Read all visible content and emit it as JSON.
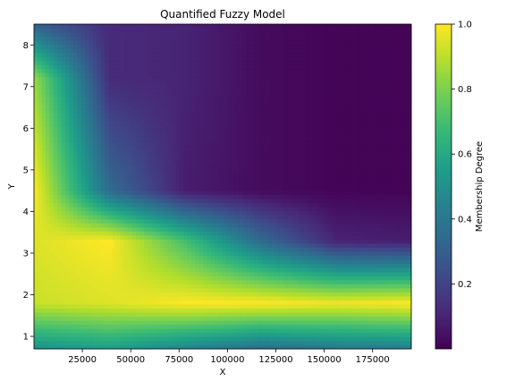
{
  "chart_data": {
    "type": "heatmap",
    "title": "Quantified Fuzzy Model",
    "xlabel": "X",
    "ylabel": "Y",
    "colorbar_label": "Membership Degree",
    "colormap": "viridis",
    "xlim": [
      0,
      195000
    ],
    "ylim": [
      0.7,
      8.5
    ],
    "clim": [
      0,
      1
    ],
    "x_ticks": [
      {
        "value": 25000,
        "label": "25000"
      },
      {
        "value": 50000,
        "label": "50000"
      },
      {
        "value": 75000,
        "label": "75000"
      },
      {
        "value": 100000,
        "label": "100000"
      },
      {
        "value": 125000,
        "label": "125000"
      },
      {
        "value": 150000,
        "label": "150000"
      },
      {
        "value": 175000,
        "label": "175000"
      }
    ],
    "y_ticks": [
      {
        "value": 1,
        "label": "1"
      },
      {
        "value": 2,
        "label": "2"
      },
      {
        "value": 3,
        "label": "3"
      },
      {
        "value": 4,
        "label": "4"
      },
      {
        "value": 5,
        "label": "5"
      },
      {
        "value": 6,
        "label": "6"
      },
      {
        "value": 7,
        "label": "7"
      },
      {
        "value": 8,
        "label": "8"
      }
    ],
    "colorbar_ticks": [
      {
        "value": 0.2,
        "label": "0.2"
      },
      {
        "value": 0.4,
        "label": "0.4"
      },
      {
        "value": 0.6,
        "label": "0.6"
      },
      {
        "value": 0.8,
        "label": "0.8"
      },
      {
        "value": 1.0,
        "label": "1.0"
      }
    ],
    "x_nodes": [
      0,
      39000,
      78000,
      117000,
      156000,
      195000
    ],
    "y_nodes": [
      0.7,
      1.8,
      3.3,
      4.5,
      7.2,
      8.5
    ],
    "z_grid": [
      [
        0.5,
        0.55,
        0.45,
        0.35,
        0.4,
        0.42
      ],
      [
        0.92,
        0.95,
        1.0,
        1.0,
        0.98,
        1.0
      ],
      [
        0.95,
        1.0,
        0.7,
        0.35,
        0.1,
        0.08
      ],
      [
        1.0,
        0.35,
        0.08,
        0.03,
        0.01,
        0.01
      ],
      [
        0.85,
        0.12,
        0.1,
        0.03,
        0.01,
        0.01
      ],
      [
        0.3,
        0.12,
        0.1,
        0.03,
        0.01,
        0.01
      ]
    ]
  }
}
